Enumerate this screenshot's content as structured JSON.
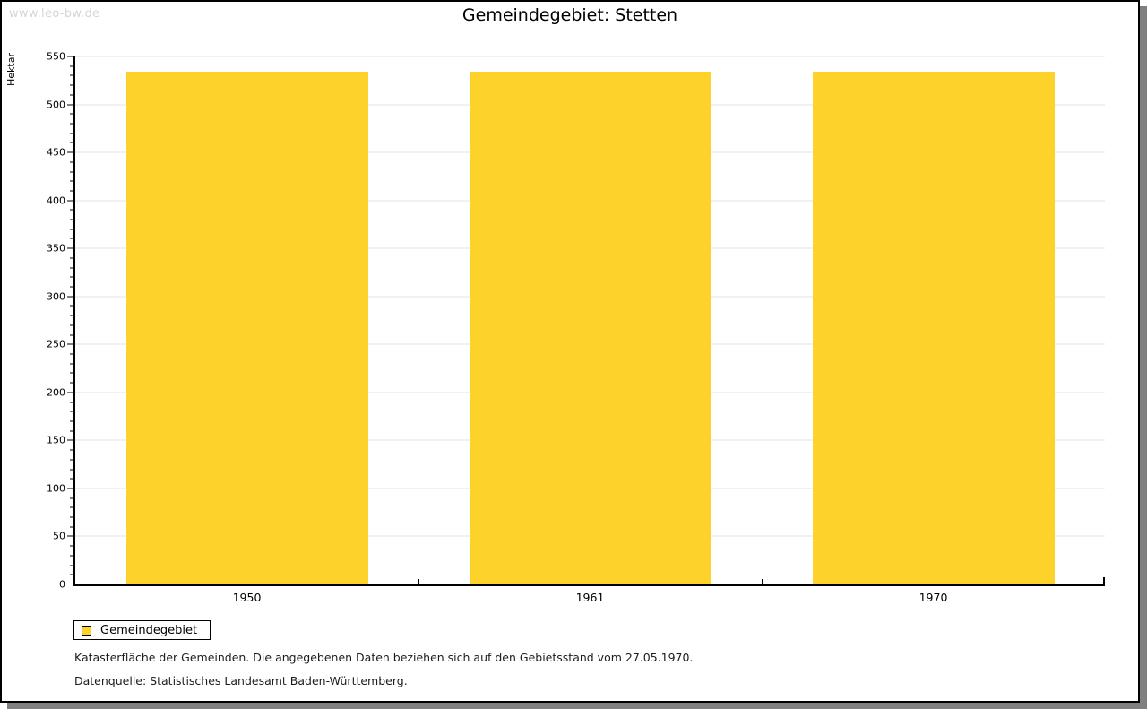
{
  "page": {
    "watermark": "www.leo-bw.de",
    "footnotes": [
      "Katasterfläche der Gemeinden. Die angegebenen Daten beziehen sich auf den Gebietsstand vom 27.05.1970.",
      "Datenquelle: Statistisches Landesamt Baden-Württemberg."
    ]
  },
  "colors": {
    "bar": "#FDD32B",
    "grid": "#E3E3E3",
    "axis": "#000000",
    "watermark": "#D5D5D5",
    "shadow": "#808080"
  },
  "chart_data": {
    "type": "bar",
    "title": "Gemeindegebiet: Stetten",
    "categories": [
      "1950",
      "1961",
      "1970"
    ],
    "series": [
      {
        "name": "Gemeindegebiet",
        "values": [
          534,
          534,
          534
        ]
      }
    ],
    "xlabel": "",
    "ylabel": "Hektar",
    "ylim": [
      0,
      550
    ],
    "ytick_step": 50,
    "ytick_minor_step": 10,
    "grid": true,
    "legend_position": "bottom-left",
    "unit": "Hektar"
  }
}
